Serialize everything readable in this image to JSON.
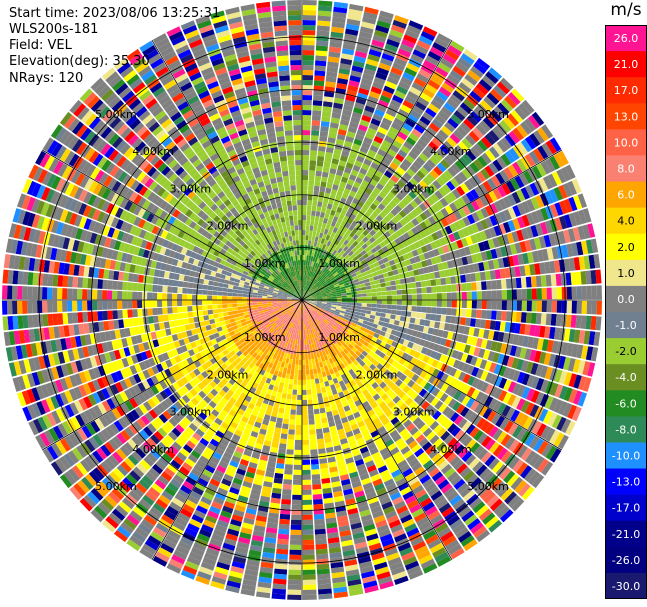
{
  "info": {
    "start_time": "Start time: 2023/08/06 13:25:31",
    "station": "WLS200s-181",
    "field": "Field: VEL",
    "elevation": "Elevation(deg): 35.30",
    "nrays": "NRays: 120"
  },
  "colorbar": {
    "unit": "m/s",
    "ticks": [
      "26.0",
      "21.0",
      "17.0",
      "13.0",
      "10.0",
      "8.0",
      "6.0",
      "4.0",
      "2.0",
      "1.0",
      "0.0",
      "-1.0",
      "-2.0",
      "-4.0",
      "-6.0",
      "-8.0",
      "-10.0",
      "-13.0",
      "-17.0",
      "-21.0",
      "-26.0",
      "-30.0"
    ],
    "colors": [
      "#ff1493",
      "#ff0000",
      "#ff2a00",
      "#ff4500",
      "#ff6347",
      "#fa8072",
      "#ffa500",
      "#ffd700",
      "#ffff00",
      "#f0e68c",
      "#808080",
      "#708090",
      "#9acd32",
      "#6b8e23",
      "#228b22",
      "#2e8b57",
      "#1e90ff",
      "#0000ff",
      "#0000cd",
      "#00008b",
      "#000080",
      "#191970"
    ]
  },
  "chart_data": {
    "type": "ppi",
    "field": "VEL",
    "unit": "m/s",
    "nrays": 120,
    "elevation_deg": 35.3,
    "range_rings_km": [
      1.0,
      2.0,
      3.0,
      4.0,
      5.0
    ],
    "ring_labels": [
      "1.00km",
      "2.00km",
      "3.00km",
      "4.00km",
      "5.00km"
    ],
    "max_range_km": 5.7,
    "colorbar_bounds": [
      -30,
      -26,
      -21,
      -17,
      -13,
      -10,
      -8,
      -6,
      -4,
      -2,
      -1,
      0,
      1,
      2,
      4,
      6,
      8,
      10,
      13,
      17,
      21,
      26,
      30
    ],
    "description_of_field": "Receding (positive, yellow/orange) velocities to the south, approaching (negative, green) to the north, noisy beyond ~3.5 km"
  }
}
